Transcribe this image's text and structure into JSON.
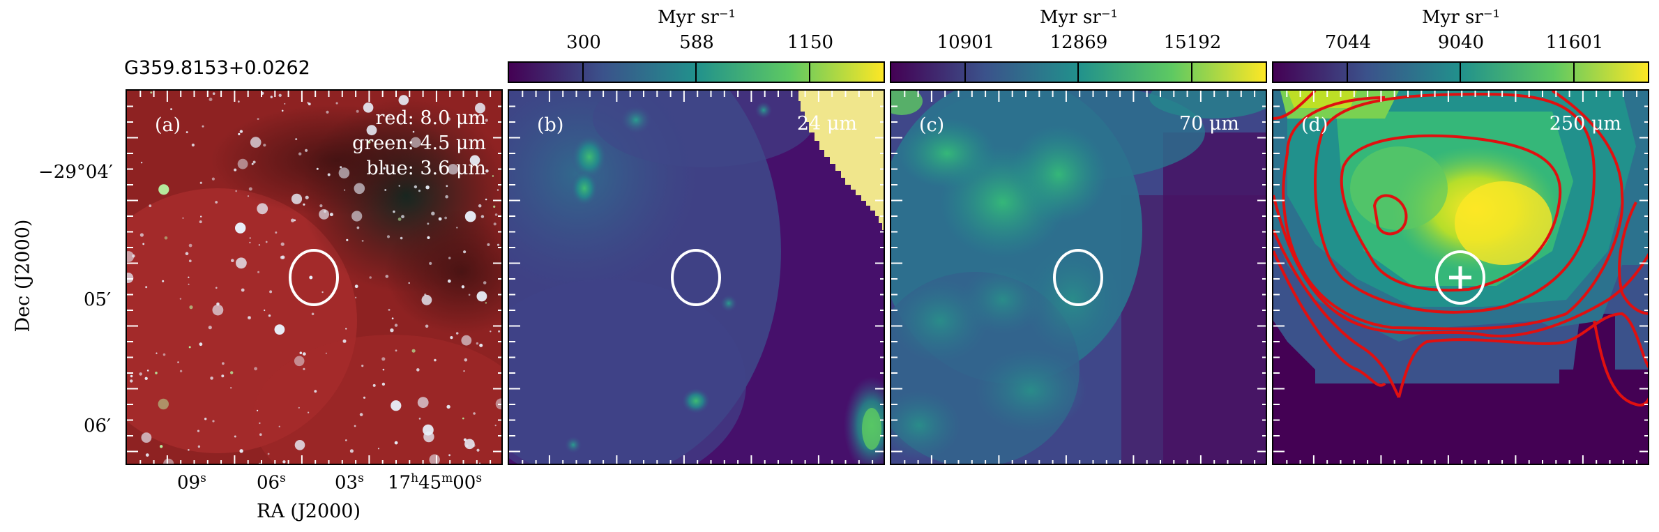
{
  "source_name": "G359.8153+0.0262",
  "axes": {
    "xlabel": "RA (J2000)",
    "ylabel": "Dec (J2000)",
    "x_ticks": [
      {
        "label": "09",
        "sup": "s"
      },
      {
        "label": "06",
        "sup": "s"
      },
      {
        "label": "03",
        "sup": "s"
      },
      {
        "label": "17",
        "sup": "h",
        "label2": "45",
        "sup2": "m",
        "label3": "00",
        "sup3": "s"
      }
    ],
    "y_ticks": [
      "−29°04′",
      "05′",
      "06′"
    ]
  },
  "panels": [
    {
      "id": "a",
      "label": "(a)",
      "legend": [
        "red: 8.0 μm",
        "green: 4.5 μm",
        "blue: 3.6 μm"
      ]
    },
    {
      "id": "b",
      "label": "(b)",
      "band": "24 μm",
      "colorbar": {
        "unit": "Myr sr⁻¹",
        "ticks": [
          "300",
          "588",
          "1150"
        ]
      }
    },
    {
      "id": "c",
      "label": "(c)",
      "band": "70 μm",
      "colorbar": {
        "unit": "Myr sr⁻¹",
        "ticks": [
          "10901",
          "12869",
          "15192"
        ]
      }
    },
    {
      "id": "d",
      "label": "(d)",
      "band": "250 μm",
      "colorbar": {
        "unit": "Myr sr⁻¹",
        "ticks": [
          "7044",
          "9040",
          "11601"
        ]
      }
    }
  ],
  "colors": {
    "viridis_dark": "#440154",
    "viridis_mid": "#21918c",
    "viridis_bright": "#fde725",
    "contour": "#e01010",
    "saturated_patch": "#f0e68c"
  }
}
